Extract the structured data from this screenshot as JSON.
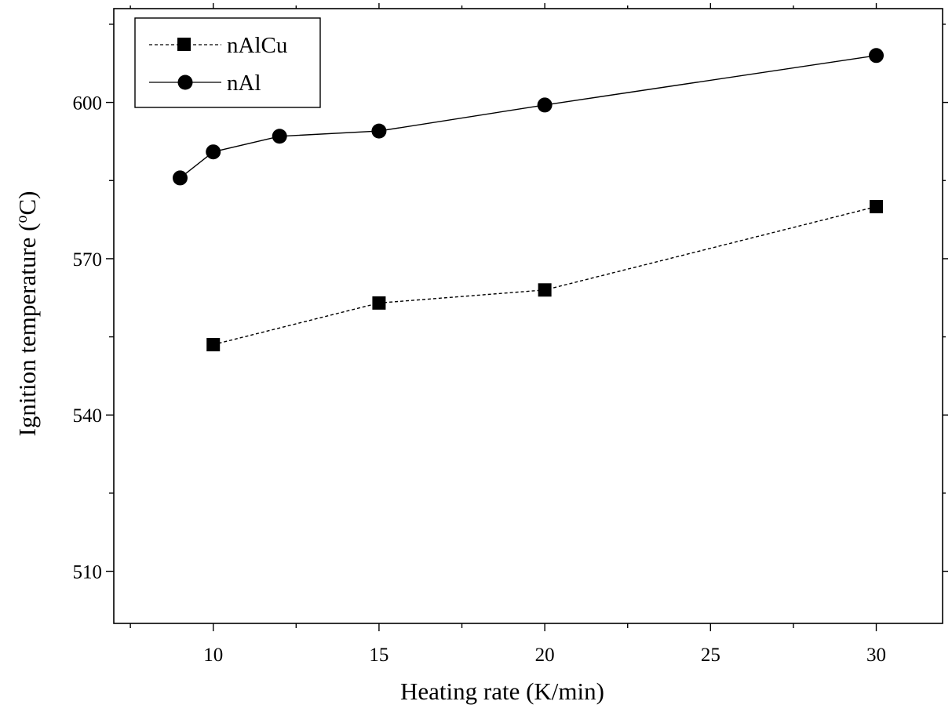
{
  "chart_data": {
    "type": "line",
    "title": "",
    "xlabel": "Heating rate (K/min)",
    "ylabel_main": "Ignition temperature (",
    "ylabel_sup": "o",
    "ylabel_unit": "C)",
    "xlim": [
      7,
      32
    ],
    "ylim": [
      500,
      618
    ],
    "x_ticks": [
      10,
      15,
      20,
      25,
      30
    ],
    "x_minor_ticks": [
      7.5,
      12.5,
      17.5,
      22.5,
      27.5
    ],
    "y_ticks": [
      510,
      540,
      570,
      600
    ],
    "y_minor_ticks": [
      525,
      555,
      585,
      615
    ],
    "grid": false,
    "legend_position": "top-left",
    "series": [
      {
        "name": "nAlCu",
        "marker": "square",
        "line_style": "dashed",
        "color": "#000000",
        "x": [
          10,
          15,
          20,
          30
        ],
        "y": [
          553.5,
          561.5,
          564,
          580
        ]
      },
      {
        "name": "nAl",
        "marker": "circle",
        "line_style": "solid",
        "color": "#000000",
        "x": [
          9,
          10,
          12,
          15,
          20,
          30
        ],
        "y": [
          585.5,
          590.5,
          593.5,
          594.5,
          599.5,
          609
        ]
      }
    ]
  }
}
